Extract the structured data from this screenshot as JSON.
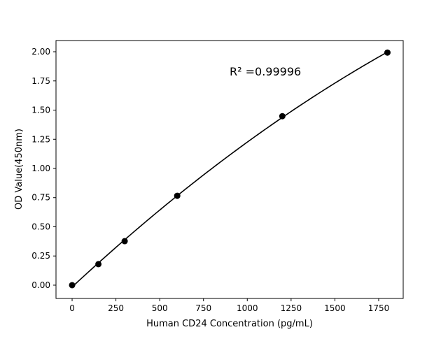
{
  "chart_data": {
    "type": "scatter",
    "title": "",
    "xlabel": "Human CD24 Concentration (pg/mL)",
    "ylabel": "OD Value(450nm)",
    "xlim": [
      -92,
      1890
    ],
    "ylim": [
      -0.114,
      2.096
    ],
    "xticks": [
      0,
      250,
      500,
      750,
      1000,
      1250,
      1500,
      1750
    ],
    "yticks": [
      "0.00",
      "0.25",
      "0.50",
      "0.75",
      "1.00",
      "1.25",
      "1.50",
      "1.75",
      "2.00"
    ],
    "grid": false,
    "series": [
      {
        "x": [
          0,
          150,
          300,
          600,
          1200,
          1800
        ],
        "y": [
          0.0,
          0.18,
          0.377,
          0.766,
          1.448,
          1.993
        ],
        "marker": "circle",
        "color": "#000000",
        "fit": "quadratic"
      }
    ],
    "annotation": "R² =0.99996"
  }
}
